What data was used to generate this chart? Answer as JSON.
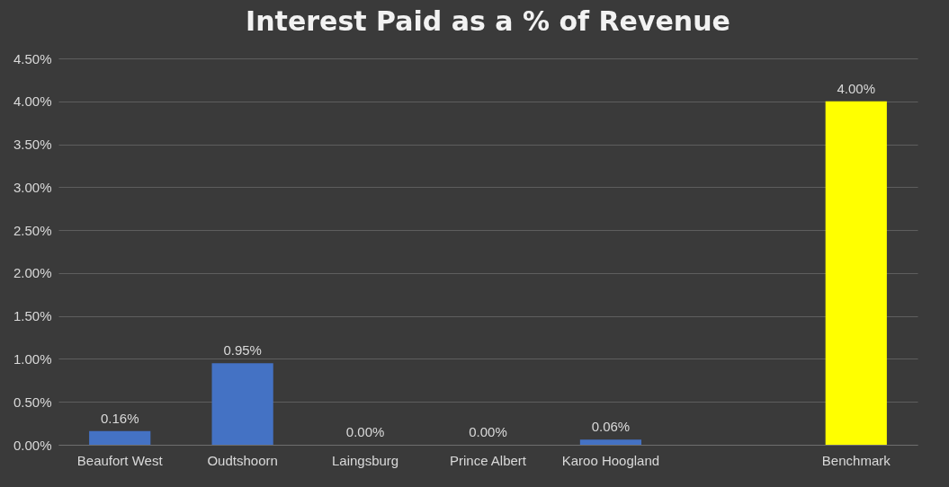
{
  "chart_data": {
    "type": "bar",
    "title": "Interest Paid as a % of Revenue",
    "categories": [
      "Beaufort West",
      "Oudtshoorn",
      "Laingsburg",
      "Prince Albert",
      "Karoo Hoogland",
      null,
      "Benchmark"
    ],
    "values": [
      0.16,
      0.95,
      0,
      0,
      0.06,
      null,
      4.0
    ],
    "colors": [
      "#4472c4",
      "#4472c4",
      "#4472c4",
      "#4472c4",
      "#4472c4",
      "#4472c4",
      "#ffff00"
    ],
    "value_labels": [
      "0.16%",
      "0.95%",
      "0.00%",
      "0.00%",
      "0.06%",
      null,
      "4.00%"
    ],
    "ylim": [
      0,
      4.5
    ],
    "yticks": [
      {
        "value": 0,
        "label": "0.00%"
      },
      {
        "value": 0.5,
        "label": "0.50%"
      },
      {
        "value": 1,
        "label": "1.00%"
      },
      {
        "value": 1.5,
        "label": "1.50%"
      },
      {
        "value": 2,
        "label": "2.00%"
      },
      {
        "value": 2.5,
        "label": "2.50%"
      },
      {
        "value": 3,
        "label": "3.00%"
      },
      {
        "value": 3.5,
        "label": "3.50%"
      },
      {
        "value": 4,
        "label": "4.00%"
      },
      {
        "value": 4.5,
        "label": "4.50%"
      }
    ],
    "grid": "y",
    "legend": false
  }
}
